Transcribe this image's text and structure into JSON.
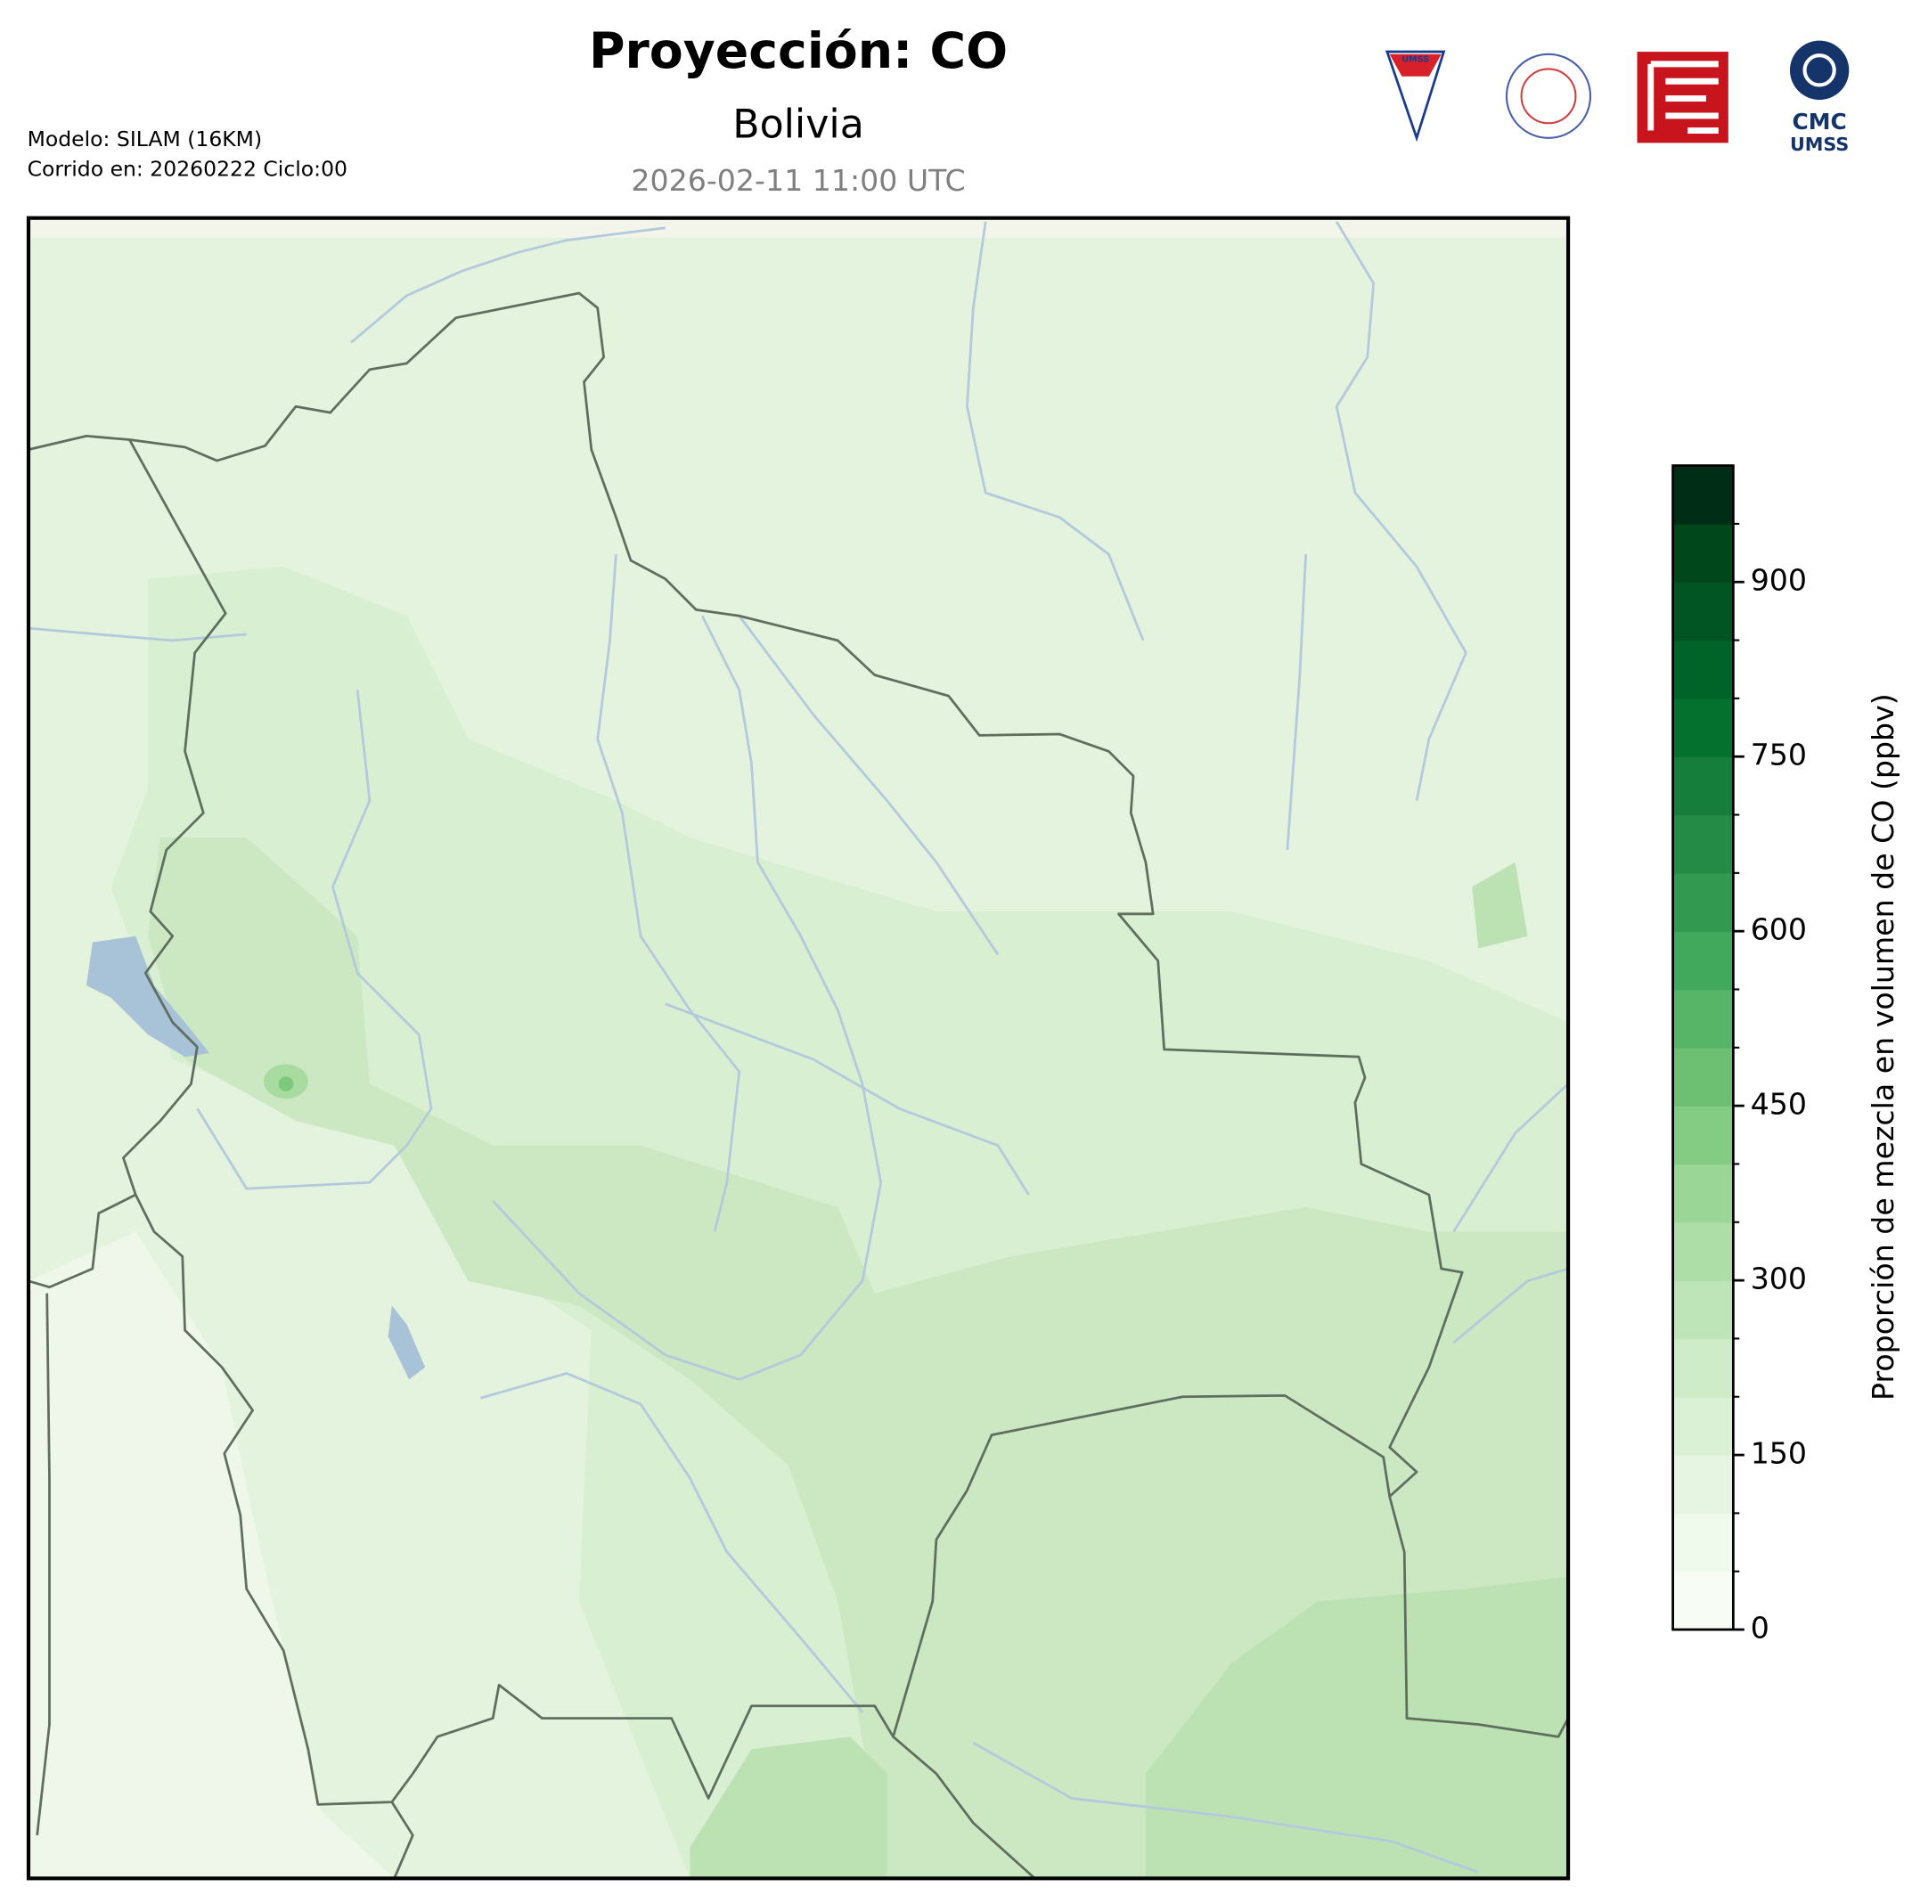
{
  "header": {
    "title": "Proyección: CO",
    "subtitle": "Bolivia",
    "valid_time": "2026-02-11 11:00 UTC",
    "model": "Modelo: SILAM (16KM)",
    "run": "Corrido en: 20260222 Ciclo:00"
  },
  "logos": {
    "umss": "UMSS",
    "cmc": "CMC",
    "cmc_sub": "UMSS"
  },
  "chart_data": {
    "type": "colorbar",
    "label": "Proporción de mezcla en volumen de CO (ppbv)",
    "ylim": [
      0,
      1000
    ],
    "yticks": [
      0,
      150,
      300,
      450,
      600,
      750,
      900
    ],
    "colors": [
      "#f7fcf5",
      "#eff9ec",
      "#e6f5e1",
      "#dbf1d5",
      "#cdecc7",
      "#bee5b8",
      "#aedea7",
      "#9ad695",
      "#84cc83",
      "#6dc072",
      "#56b567",
      "#41a95b",
      "#329a50",
      "#238b45",
      "#147e3a",
      "#05712f",
      "#006428",
      "#005522",
      "#00471c",
      "#002d15"
    ]
  }
}
